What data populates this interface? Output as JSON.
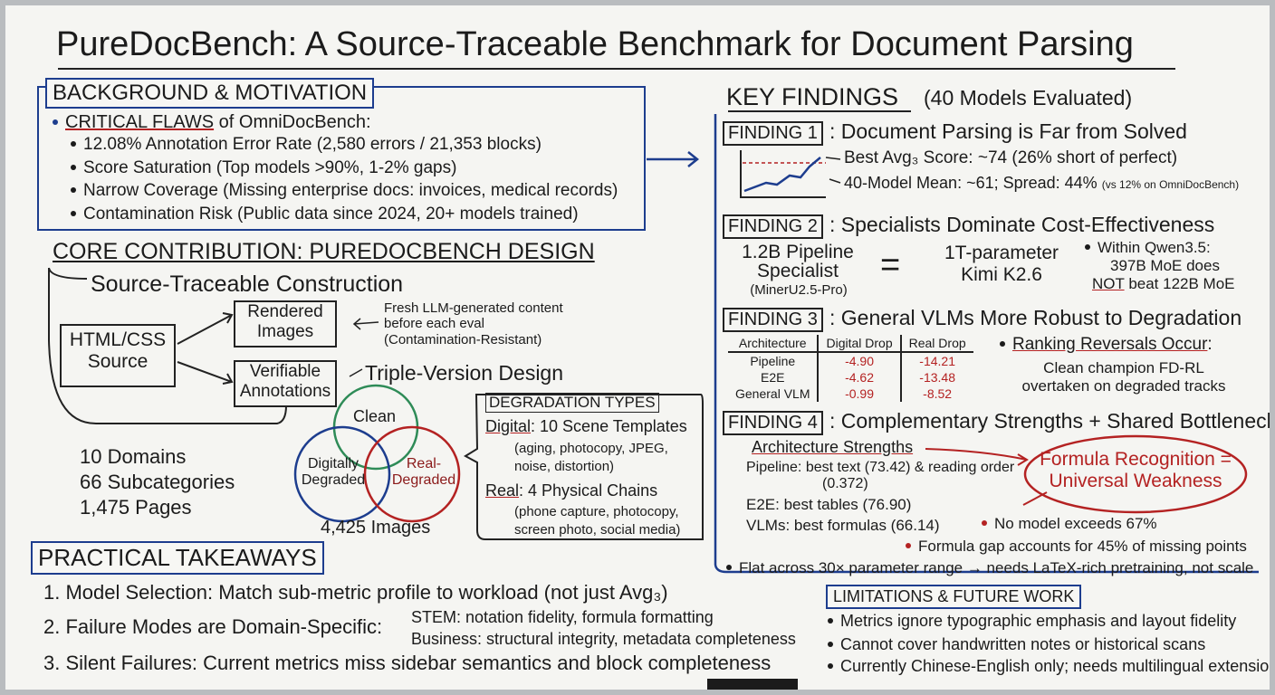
{
  "title": "PureDocBench: A Source-Traceable Benchmark for Document Parsing",
  "background": {
    "heading": "BACKGROUND & MOTIVATION",
    "lead_label": "CRITICAL FLAWS",
    "lead_rest": "of OmniDocBench:",
    "items": [
      "12.08% Annotation Error Rate (2,580 errors / 21,353 blocks)",
      "Score Saturation (Top models >90%, 1-2% gaps)",
      "Narrow Coverage (Missing enterprise docs: invoices, medical records)",
      "Contamination Risk (Public data since 2024, 20+ models trained)"
    ]
  },
  "core": {
    "heading": "CORE CONTRIBUTION: PUREDOCBENCH DESIGN",
    "construction_title": "Source-Traceable Construction",
    "source": "HTML/CSS Source",
    "rendered": "Rendered Images",
    "annotations": "Verifiable Annotations",
    "fresh_note": "Fresh LLM-generated content before each eval (Contamination-Resistant)",
    "triple_title": "Triple-Version Design",
    "venn": [
      "Clean",
      "Digitally Degraded",
      "Real-Degraded"
    ],
    "images": "4,425 Images",
    "stats": [
      "10 Domains",
      "66 Subcategories",
      "1,475 Pages"
    ],
    "degradation": {
      "heading": "DEGRADATION TYPES",
      "types": [
        {
          "label": "Digital",
          "rest": ": 10 Scene Templates",
          "detail": "(aging, photocopy, JPEG, noise, distortion)"
        },
        {
          "label": "Real",
          "rest": ": 4 Physical Chains",
          "detail": "(phone capture, photocopy, screen photo, social media)"
        }
      ]
    }
  },
  "takeaways": {
    "heading": "PRACTICAL TAKEAWAYS",
    "items": [
      "1. Model Selection: Match sub-metric profile to workload (not just Avg₃)",
      "2. Failure Modes are Domain-Specific:",
      "3. Silent Failures: Current metrics miss sidebar semantics and block completeness"
    ],
    "domain_notes": [
      "STEM: notation fidelity, formula formatting",
      "Business: structural integrity, metadata completeness"
    ]
  },
  "key_findings": {
    "heading": "KEY FINDINGS",
    "subheading": "(40 Models Evaluated)",
    "findings": [
      {
        "label": "FINDING 1",
        "title": ": Document Parsing is Far from Solved",
        "notes": [
          "Best Avg₃ Score: ~74 (26% short of perfect)",
          "40-Model Mean: ~61; Spread: 44%"
        ],
        "small_note": "(vs 12% on OmniDocBench)"
      },
      {
        "label": "FINDING 2",
        "title": ": Specialists Dominate Cost-Effectiveness",
        "left": "1.2B Pipeline Specialist",
        "left_sub": "(MinerU2.5-Pro)",
        "equals": "=",
        "right": "1T-parameter Kimi K2.6",
        "note": [
          "Within Qwen3.5:",
          "397B MoE does",
          "NOT",
          "beat 122B MoE"
        ]
      },
      {
        "label": "FINDING 3",
        "title": ": General VLMs More Robust to Degradation",
        "table": {
          "header": [
            "Architecture",
            "Digital Drop",
            "Real Drop"
          ],
          "rows": [
            [
              "Pipeline",
              "-4.90",
              "-14.21"
            ],
            [
              "E2E",
              "-4.62",
              "-13.48"
            ],
            [
              "General VLM",
              "-0.99",
              "-8.52"
            ]
          ]
        },
        "note_label": "Ranking Reversals Occur",
        "note_colon": ":",
        "note": "Clean champion FD-RL overtaken on degraded tracks"
      },
      {
        "label": "FINDING 4",
        "title": ": Complementary Strengths + Shared Bottleneck",
        "strengths_heading": "Architecture Strengths",
        "strengths": [
          "Pipeline: best text (73.42) & reading order (0.372)",
          "E2E: best tables (76.90)",
          "VLMs: best formulas (66.14)"
        ],
        "callout": "Formula Recognition = Universal Weakness",
        "bullets": [
          "No model exceeds 67%",
          "Formula gap accounts for 45% of missing points",
          "Flat across 30× parameter range → needs LaTeX-rich pretraining, not scale"
        ]
      }
    ]
  },
  "limitations": {
    "heading": "LIMITATIONS & FUTURE WORK",
    "items": [
      "Metrics ignore typographic emphasis and layout fidelity",
      "Cannot cover handwritten notes or historical scans",
      "Currently Chinese-English only; needs multilingual extension"
    ]
  }
}
